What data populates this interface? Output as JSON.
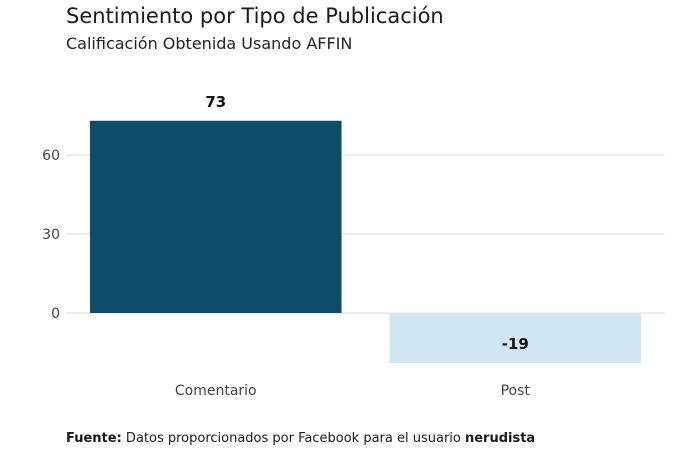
{
  "chart_data": {
    "type": "bar",
    "title": "Sentimiento por Tipo de Publicación",
    "subtitle": "Calificación Obtenida Usando AFFIN",
    "categories": [
      "Comentario",
      "Post"
    ],
    "values": [
      73,
      -19
    ],
    "data_labels": [
      "73",
      "-19"
    ],
    "bar_colors": [
      "#0e4d6a",
      "#d0e6f3"
    ],
    "yticks": [
      0,
      30,
      60
    ],
    "ytick_labels": [
      "0",
      "30",
      "60"
    ],
    "ylim": [
      -25,
      82
    ],
    "xlabel": "",
    "ylabel": "",
    "grid": true,
    "legend": "none"
  },
  "caption": {
    "label": "Fuente:",
    "text": " Datos proporcionados por Facebook para el usuario ",
    "user": "nerudista"
  },
  "colors": {
    "grid": "#dddddd",
    "axis_text": "#444444",
    "label_text": "#111111"
  }
}
